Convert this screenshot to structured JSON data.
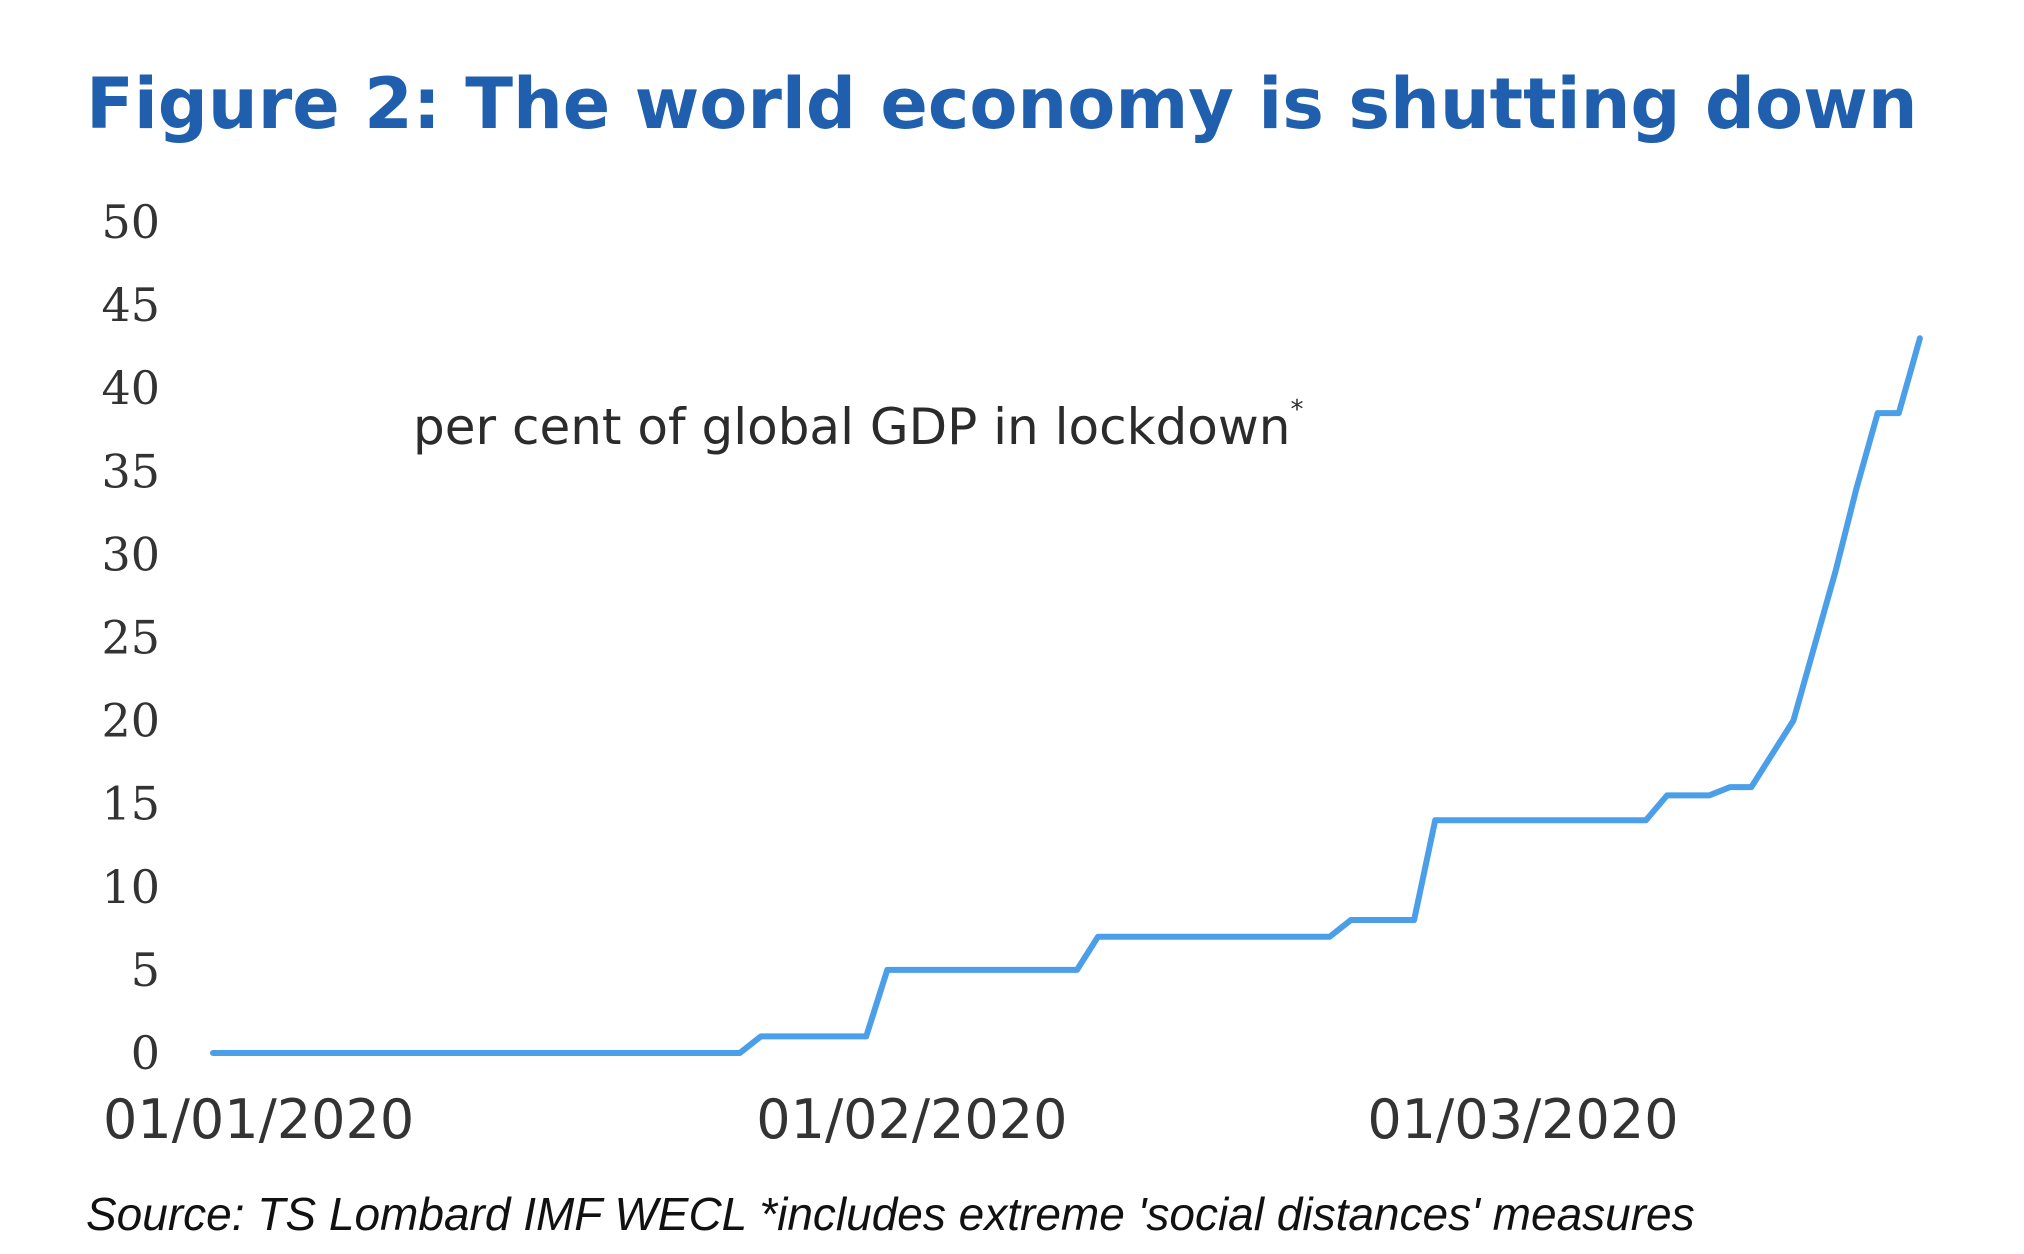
{
  "chart_data": {
    "type": "line",
    "title": "Figure 2: The world economy is shutting down",
    "annotation": "per cent of global GDP in lockdown",
    "annotation_mark": "*",
    "source": "Source: TS Lombard IMF WECL *includes extreme 'social distances' measures",
    "xlabel": "",
    "ylabel": "",
    "ylim": [
      0,
      50
    ],
    "y_ticks": [
      "0",
      "5",
      "10",
      "15",
      "20",
      "25",
      "30",
      "35",
      "40",
      "45",
      "50"
    ],
    "x_ticks": [
      {
        "date": "2020-01-01",
        "label": "01/01/2020"
      },
      {
        "date": "2020-02-01",
        "label": "01/02/2020"
      },
      {
        "date": "2020-03-01",
        "label": "01/03/2020"
      }
    ],
    "x_range": [
      "2020-01-01",
      "2020-03-24"
    ],
    "grid": false,
    "legend": "none",
    "line_color": "#4a9fe8",
    "title_color": "#1f5fae",
    "series": [
      {
        "points": [
          {
            "x": "2020-01-01",
            "y": 0
          },
          {
            "x": "2020-01-26",
            "y": 0
          },
          {
            "x": "2020-01-27",
            "y": 1
          },
          {
            "x": "2020-02-01",
            "y": 1
          },
          {
            "x": "2020-02-02",
            "y": 5
          },
          {
            "x": "2020-02-11",
            "y": 5
          },
          {
            "x": "2020-02-12",
            "y": 7
          },
          {
            "x": "2020-02-23",
            "y": 7
          },
          {
            "x": "2020-02-24",
            "y": 8
          },
          {
            "x": "2020-02-27",
            "y": 8
          },
          {
            "x": "2020-02-28",
            "y": 14
          },
          {
            "x": "2020-03-09",
            "y": 14
          },
          {
            "x": "2020-03-10",
            "y": 15.5
          },
          {
            "x": "2020-03-12",
            "y": 15.5
          },
          {
            "x": "2020-03-13",
            "y": 16
          },
          {
            "x": "2020-03-14",
            "y": 16
          },
          {
            "x": "2020-03-16",
            "y": 20
          },
          {
            "x": "2020-03-18",
            "y": 29
          },
          {
            "x": "2020-03-19",
            "y": 34
          },
          {
            "x": "2020-03-20",
            "y": 38.5
          },
          {
            "x": "2020-03-21",
            "y": 38.5
          },
          {
            "x": "2020-03-22",
            "y": 43
          }
        ]
      }
    ]
  }
}
